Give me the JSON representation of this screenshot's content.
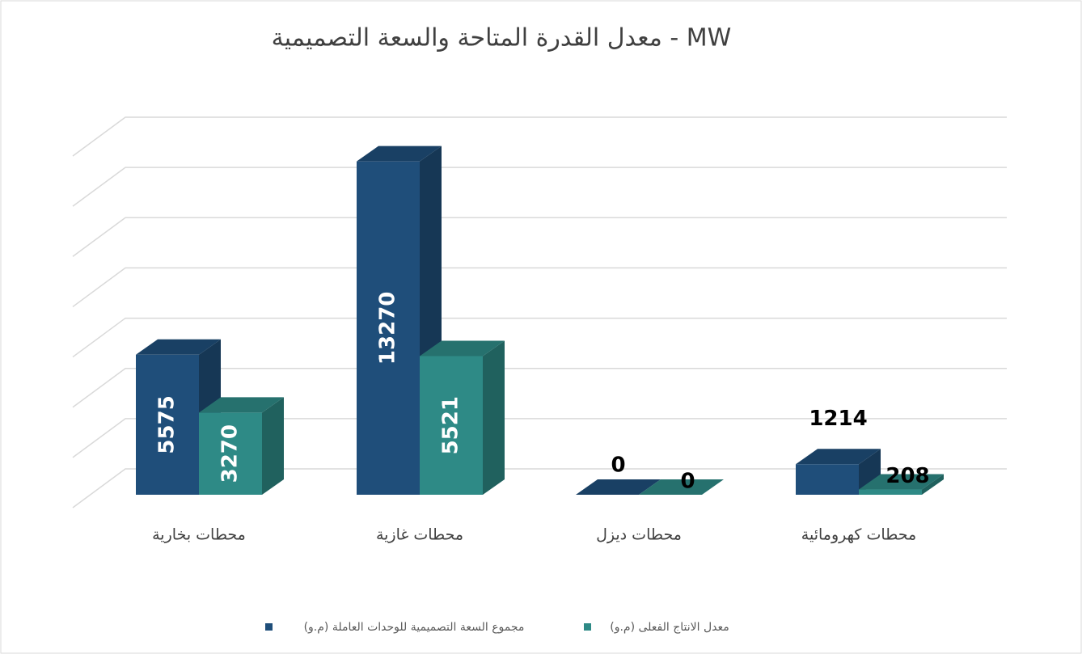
{
  "chart_data": {
    "type": "bar3d",
    "title": "معدل القدرة المتاحة والسعة التصميمية - MW",
    "categories": [
      "محطات بخارية",
      "محطات غازية",
      "محطات ديزل",
      "محطات كهرومائية"
    ],
    "series": [
      {
        "name": "مجموع السعة التصميمية للوحدات العاملة (م.و)",
        "color": "#1f4e7a",
        "values": [
          5575,
          13270,
          0,
          1214
        ]
      },
      {
        "name": "معدل الانتاج الفعلى (م.و)",
        "color": "#2e8a86",
        "values": [
          3270,
          5521,
          0,
          208
        ]
      }
    ],
    "ylim": [
      0,
      14000
    ],
    "yticks": [
      0,
      2000,
      4000,
      6000,
      8000,
      10000,
      12000,
      14000
    ],
    "grid": true
  }
}
